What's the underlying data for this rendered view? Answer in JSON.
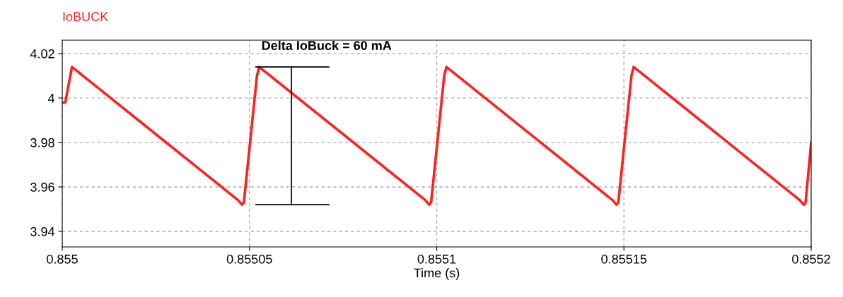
{
  "chart_data": {
    "type": "line",
    "title": "IoBUCK",
    "xlabel": "Time (s)",
    "x": [
      0.855,
      0.8550008,
      0.8550026,
      0.855047,
      0.855048,
      0.8550485,
      0.855052,
      0.8550526,
      0.855097,
      0.855098,
      0.8550985,
      0.855102,
      0.8551026,
      0.855147,
      0.855148,
      0.8551485,
      0.855152,
      0.8551526,
      0.855197,
      0.855198,
      0.8551985,
      0.8552
    ],
    "series": [
      {
        "color": "#ff2020",
        "values": [
          3.998,
          3.998,
          4.014,
          3.954,
          3.952,
          3.953,
          4.01,
          4.014,
          3.954,
          3.952,
          3.953,
          4.01,
          4.014,
          3.954,
          3.952,
          3.953,
          4.01,
          4.014,
          3.954,
          3.952,
          3.953,
          3.98
        ]
      },
      {
        "type": "line",
        "color": "#000000",
        "x": [
          0.8550517,
          0.8550712
        ],
        "values": [
          4.014,
          4.014
        ]
      },
      {
        "type": "line",
        "color": "#000000",
        "x": [
          0.8550612,
          0.8550612
        ],
        "values": [
          3.952,
          4.014
        ]
      },
      {
        "type": "line",
        "color": "#000000",
        "x": [
          0.8550517,
          0.8550712
        ],
        "values": [
          3.952,
          3.952
        ]
      }
    ],
    "annotations": [
      "Delta IoBuck = 60 mA"
    ],
    "xlim": [
      0.855,
      0.8552
    ],
    "ylim": [
      3.933,
      4.026
    ],
    "xticks": [
      0.855,
      0.85505,
      0.8551,
      0.85515,
      0.8552
    ],
    "yticks": [
      3.94,
      3.96,
      3.98,
      4,
      4.02
    ],
    "grid": true,
    "line_style": "solid",
    "marker": "none"
  }
}
